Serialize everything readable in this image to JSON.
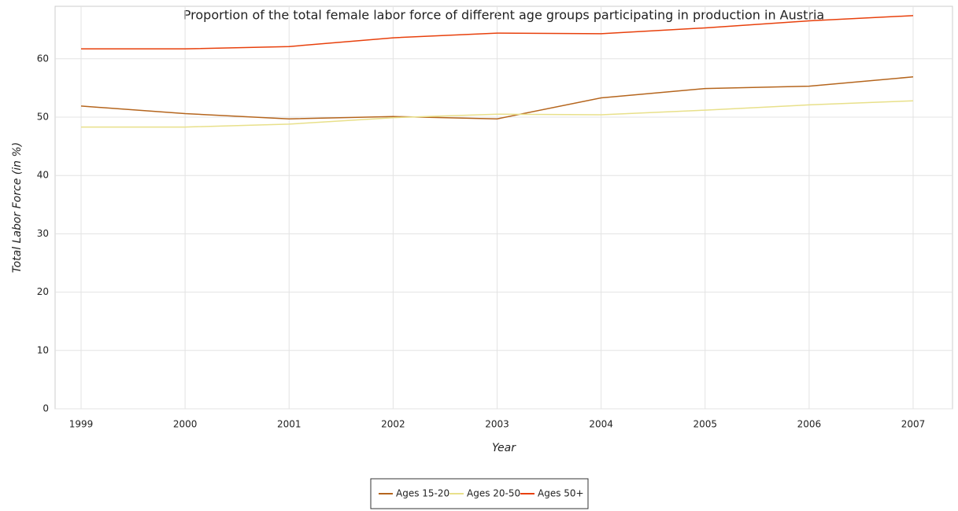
{
  "chart_data": {
    "type": "line",
    "title": "Proportion of the total female labor force of different age groups participating in production in Austria",
    "x_label": "Year",
    "y_label": "Total Labor Force (in %)",
    "categories": [
      "1999",
      "2000",
      "2001",
      "2002",
      "2003",
      "2004",
      "2005",
      "2006",
      "2007"
    ],
    "series": [
      {
        "name": "Ages 15-20",
        "color": "#b5651d",
        "values": [
          51.9,
          50.6,
          49.7,
          50.1,
          49.7,
          53.3,
          54.9,
          55.3,
          56.9
        ]
      },
      {
        "name": "Ages 20-50",
        "color": "#e8e08a",
        "values": [
          48.3,
          48.3,
          48.8,
          49.9,
          50.5,
          50.4,
          51.2,
          52.1,
          52.8
        ]
      },
      {
        "name": "Ages 50+",
        "color": "#e8400c",
        "values": [
          61.7,
          61.7,
          62.1,
          63.6,
          64.4,
          64.3,
          65.3,
          66.5,
          67.4
        ]
      }
    ],
    "ylim": [
      0,
      69
    ],
    "yticks": [
      0,
      10,
      20,
      30,
      40,
      50,
      60
    ],
    "grid": true,
    "legend": "bottom"
  }
}
